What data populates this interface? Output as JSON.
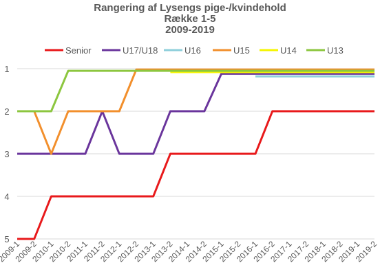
{
  "chart_data": {
    "type": "line",
    "title_lines": [
      "Rangering af Lysengs pige-/kvindehold",
      "Række 1-5",
      "2009-2019"
    ],
    "xlabel": "",
    "ylabel": "",
    "y_reversed": true,
    "ylim": [
      1,
      5
    ],
    "y_ticks": [
      "1",
      "2",
      "3",
      "4",
      "5"
    ],
    "grid": "horizontal",
    "legend_position": "top",
    "categories": [
      "2009-1",
      "2009-2",
      "2010-1",
      "2010-2",
      "2011-1",
      "2011-2",
      "2012-1",
      "2012-2",
      "2013-1",
      "2013-2",
      "2014-1",
      "2014-2",
      "2015-1",
      "2015-2",
      "2016-1",
      "2016-2",
      "2017-1",
      "2017-2",
      "2018-1",
      "2018-2",
      "2019-1",
      "2019-2"
    ],
    "series": [
      {
        "name": "Senior",
        "color": "#e8191b",
        "values": [
          5,
          5,
          4,
          4,
          4,
          4,
          4,
          4,
          4,
          3,
          3,
          3,
          3,
          3,
          3,
          2,
          2,
          2,
          2,
          2,
          2,
          2
        ]
      },
      {
        "name": "U17/U18",
        "color": "#6a359c",
        "values": [
          3,
          3,
          3,
          3,
          3,
          2,
          3,
          3,
          3,
          2,
          2,
          2,
          1.12,
          1.12,
          1.12,
          1.12,
          1.12,
          1.12,
          1.12,
          1.12,
          1.12,
          1.12
        ]
      },
      {
        "name": "U16",
        "color": "#8ecfdb",
        "values": [
          null,
          null,
          null,
          null,
          null,
          null,
          null,
          null,
          null,
          null,
          null,
          null,
          null,
          null,
          1.18,
          1.18,
          1.18,
          1.18,
          1.18,
          1.18,
          1.18,
          1.18
        ]
      },
      {
        "name": "U15",
        "color": "#f28f2c",
        "values": [
          2,
          2,
          3,
          2,
          2,
          2,
          2,
          1.02,
          1.02,
          1.02,
          1.02,
          1.02,
          1.02,
          1.02,
          1.02,
          1.02,
          1.02,
          1.02,
          1.02,
          1.02,
          1.02,
          1.02
        ]
      },
      {
        "name": "U14",
        "color": "#f5f500",
        "values": [
          null,
          null,
          null,
          null,
          null,
          null,
          null,
          null,
          null,
          1.08,
          1.08,
          1.08,
          1.08,
          1.08,
          1.08,
          1.08,
          1.08,
          1.08,
          1.08,
          1.08,
          1.08,
          1.08
        ]
      },
      {
        "name": "U13",
        "color": "#8cc63f",
        "values": [
          2,
          2,
          2,
          1.05,
          1.05,
          1.05,
          1.05,
          1.05,
          1.05,
          1.05,
          1.05,
          1.05,
          1.05,
          1.05,
          1.05,
          1.05,
          1.05,
          1.05,
          1.05,
          1.05,
          1.05,
          1.05
        ]
      }
    ]
  }
}
